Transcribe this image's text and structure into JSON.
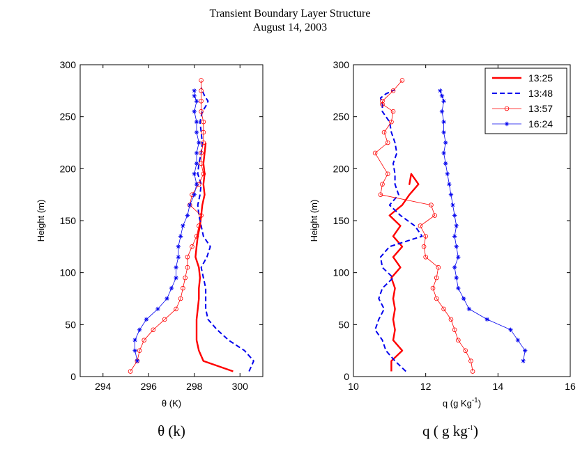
{
  "figure": {
    "title": "Transient Boundary Layer Structure",
    "subtitle": "August 14, 2003",
    "caption_left": "θ (k)",
    "caption_right_base": "q ( g kg",
    "caption_right_sup": "-1",
    "caption_right_end": ")"
  },
  "chart_data": [
    {
      "type": "line",
      "xlabel": "θ (K)",
      "ylabel": "Height (m)",
      "xlim": [
        293,
        301
      ],
      "ylim": [
        0,
        300
      ],
      "xticks": [
        294,
        296,
        298,
        300
      ],
      "yticks": [
        0,
        50,
        100,
        150,
        200,
        250,
        300
      ],
      "grid": false,
      "series": [
        {
          "name": "13:25",
          "color": "#ff0000",
          "style": "solid",
          "width": 2.4,
          "marker": "none",
          "x": [
            299.7,
            298.4,
            298.2,
            298.1,
            298.1,
            298.1,
            298.15,
            298.2,
            298.2,
            298.25,
            298.2,
            298.05,
            298.1,
            298.15,
            298.25,
            298.3,
            298.35,
            298.45,
            298.4,
            298.45,
            298.4,
            298.45,
            298.5
          ],
          "y": [
            5,
            15,
            25,
            35,
            45,
            55,
            65,
            75,
            85,
            95,
            105,
            115,
            125,
            135,
            145,
            155,
            165,
            175,
            185,
            195,
            205,
            215,
            225
          ]
        },
        {
          "name": "13:48",
          "color": "#0000ee",
          "style": "dashed",
          "width": 2.0,
          "marker": "none",
          "x": [
            300.4,
            300.6,
            300.2,
            299.5,
            299.0,
            298.6,
            298.5,
            298.5,
            298.5,
            298.4,
            298.3,
            298.55,
            298.7,
            298.4,
            298.3,
            298.2,
            298.15,
            298.25,
            298.3,
            298.15,
            298.2,
            298.3,
            298.35,
            298.3,
            298.25,
            298.35,
            298.5,
            298.6,
            298.45,
            298.35,
            298.3
          ],
          "y": [
            5,
            15,
            25,
            35,
            45,
            55,
            65,
            75,
            85,
            95,
            105,
            115,
            125,
            135,
            145,
            155,
            165,
            175,
            185,
            195,
            205,
            215,
            225,
            235,
            245,
            255,
            260,
            265,
            270,
            275,
            278
          ]
        },
        {
          "name": "13:57",
          "color": "#ff0000",
          "style": "solid",
          "width": 0.8,
          "marker": "circle",
          "x": [
            295.2,
            295.5,
            295.6,
            295.8,
            296.2,
            296.7,
            297.2,
            297.4,
            297.5,
            297.6,
            297.7,
            297.7,
            297.9,
            298.1,
            298.2,
            298.3,
            297.8,
            297.9,
            298.2,
            298.4,
            298.3,
            298.3,
            298.4,
            298.4,
            298.4,
            298.3,
            298.3,
            298.3,
            298.3
          ],
          "y": [
            5,
            15,
            25,
            35,
            45,
            55,
            65,
            75,
            85,
            95,
            105,
            115,
            125,
            135,
            145,
            155,
            165,
            175,
            185,
            195,
            205,
            215,
            225,
            235,
            245,
            255,
            265,
            275,
            285
          ]
        },
        {
          "name": "16:24",
          "color": "#0000ee",
          "style": "solid",
          "width": 0.8,
          "marker": "star",
          "x": [
            295.5,
            295.4,
            295.4,
            295.6,
            295.9,
            296.4,
            296.8,
            297.0,
            297.2,
            297.2,
            297.3,
            297.3,
            297.4,
            297.5,
            297.7,
            297.8,
            298.0,
            298.1,
            298.0,
            298.1,
            298.1,
            298.2,
            298.1,
            298.1,
            298.0,
            298.1,
            298.0,
            298.0
          ],
          "y": [
            15,
            25,
            35,
            45,
            55,
            65,
            75,
            85,
            95,
            105,
            115,
            125,
            135,
            145,
            155,
            165,
            175,
            185,
            195,
            205,
            215,
            225,
            235,
            245,
            255,
            265,
            270,
            275
          ]
        }
      ]
    },
    {
      "type": "line",
      "xlabel_base": "q (g Kg",
      "xlabel_sup": "-1",
      "xlabel_end": ")",
      "ylabel": "Height (m)",
      "xlim": [
        10,
        16
      ],
      "ylim": [
        0,
        300
      ],
      "xticks": [
        10,
        12,
        14,
        16
      ],
      "yticks": [
        0,
        50,
        100,
        150,
        200,
        250,
        300
      ],
      "grid": false,
      "legend": "top-right",
      "legend_entries": [
        "13:25",
        "13:48",
        "13:57",
        "16:24"
      ],
      "series": [
        {
          "name": "13:25",
          "color": "#ff0000",
          "style": "solid",
          "width": 2.4,
          "marker": "none",
          "x": [
            11.05,
            11.05,
            11.35,
            11.1,
            11.15,
            11.1,
            11.15,
            11.1,
            11.15,
            11.05,
            11.3,
            11.1,
            11.35,
            11.1,
            11.3,
            11.0,
            11.35,
            11.55,
            11.8,
            11.6,
            11.55,
            11.6
          ],
          "y": [
            5,
            15,
            25,
            35,
            45,
            55,
            65,
            75,
            85,
            95,
            105,
            115,
            125,
            135,
            145,
            155,
            165,
            175,
            185,
            195,
            185,
            195
          ]
        },
        {
          "name": "13:48",
          "color": "#0000ee",
          "style": "dashed",
          "width": 2.0,
          "marker": "none",
          "x": [
            11.45,
            11.15,
            10.9,
            10.8,
            10.6,
            10.7,
            10.85,
            10.7,
            10.8,
            11.1,
            10.8,
            10.75,
            11.0,
            11.9,
            11.7,
            11.3,
            11.0,
            11.25,
            11.15,
            11.15,
            11.1,
            11.2,
            11.15,
            11.05,
            11.0,
            10.8,
            10.8,
            10.75,
            10.9,
            11.15
          ],
          "y": [
            5,
            15,
            25,
            35,
            45,
            55,
            65,
            75,
            85,
            95,
            105,
            115,
            125,
            135,
            145,
            155,
            165,
            175,
            185,
            195,
            205,
            215,
            225,
            235,
            245,
            255,
            262,
            268,
            272,
            276
          ]
        },
        {
          "name": "13:57",
          "color": "#ff0000",
          "style": "solid",
          "width": 0.8,
          "marker": "circle",
          "x": [
            13.3,
            13.25,
            13.1,
            12.9,
            12.8,
            12.7,
            12.5,
            12.3,
            12.2,
            12.3,
            12.35,
            12.0,
            11.95,
            12.0,
            11.85,
            12.25,
            12.15,
            10.75,
            10.8,
            10.95,
            10.6,
            10.95,
            10.85,
            11.05,
            11.1,
            10.8,
            10.8,
            11.1,
            11.35
          ],
          "y": [
            5,
            15,
            25,
            35,
            45,
            55,
            65,
            75,
            85,
            95,
            105,
            115,
            125,
            135,
            145,
            155,
            165,
            175,
            185,
            195,
            215,
            225,
            235,
            245,
            255,
            262,
            265,
            275,
            285
          ]
        },
        {
          "name": "16:24",
          "color": "#0000ee",
          "style": "solid",
          "width": 0.8,
          "marker": "star",
          "x": [
            14.7,
            14.75,
            14.55,
            14.35,
            13.7,
            13.2,
            13.05,
            12.9,
            12.85,
            12.8,
            12.9,
            12.85,
            12.8,
            12.85,
            12.8,
            12.75,
            12.7,
            12.65,
            12.6,
            12.55,
            12.5,
            12.55,
            12.5,
            12.5,
            12.45,
            12.5,
            12.45,
            12.4
          ],
          "y": [
            15,
            25,
            35,
            45,
            55,
            65,
            75,
            85,
            95,
            105,
            115,
            125,
            135,
            145,
            155,
            165,
            175,
            185,
            195,
            205,
            215,
            225,
            235,
            245,
            255,
            265,
            270,
            275
          ]
        }
      ]
    }
  ]
}
